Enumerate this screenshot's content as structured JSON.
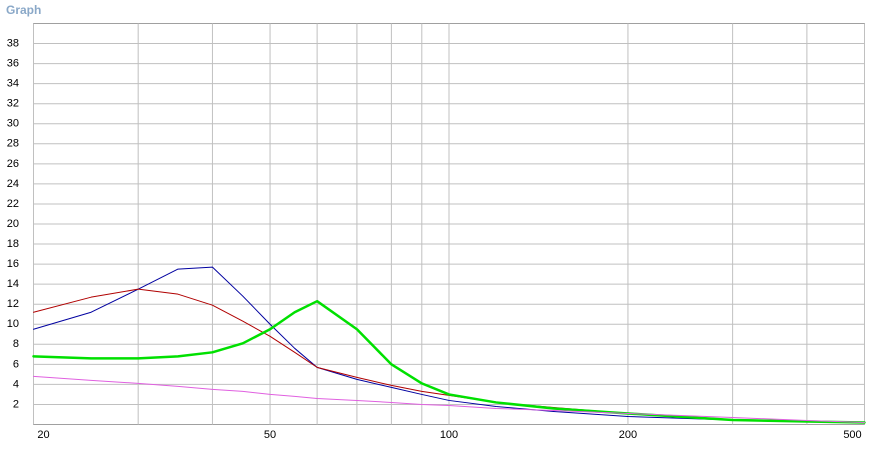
{
  "chart_data": {
    "type": "line",
    "title": "Graph",
    "x": [
      20,
      25,
      30,
      35,
      40,
      45,
      50,
      55,
      60,
      70,
      80,
      90,
      100,
      120,
      150,
      200,
      300,
      400,
      500
    ],
    "xlim": [
      20,
      500
    ],
    "xlog": true,
    "xticks": [
      20,
      50,
      100,
      200,
      500
    ],
    "xminor": [
      30,
      40,
      60,
      70,
      80,
      90,
      300,
      400
    ],
    "ylim": [
      0,
      40
    ],
    "yticks": [
      2,
      4,
      6,
      8,
      10,
      12,
      14,
      16,
      18,
      20,
      22,
      24,
      26,
      28,
      30,
      32,
      34,
      36,
      38
    ],
    "grid": true,
    "series": [
      {
        "color": "#0000a0",
        "width": 1,
        "values": [
          9.5,
          11.2,
          13.5,
          15.5,
          15.7,
          12.8,
          10.0,
          7.6,
          5.7,
          4.5,
          3.7,
          3.0,
          2.4,
          1.8,
          1.3,
          0.8,
          0.45,
          0.3,
          0.2
        ]
      },
      {
        "color": "#b00000",
        "width": 1,
        "values": [
          11.2,
          12.7,
          13.5,
          13.0,
          11.9,
          10.3,
          8.8,
          7.2,
          5.7,
          4.7,
          3.9,
          3.3,
          2.9,
          2.2,
          1.7,
          1.1,
          0.5,
          0.35,
          0.2
        ]
      },
      {
        "color": "#00e000",
        "width": 2.5,
        "values": [
          6.8,
          6.6,
          6.6,
          6.8,
          7.2,
          8.1,
          9.5,
          11.2,
          12.3,
          9.5,
          6.0,
          4.1,
          3.0,
          2.2,
          1.6,
          1.1,
          0.45,
          0.3,
          0.2
        ]
      },
      {
        "color": "#e060e0",
        "width": 1,
        "values": [
          4.8,
          4.4,
          4.1,
          3.8,
          3.5,
          3.3,
          3.0,
          2.8,
          2.6,
          2.4,
          2.2,
          2.0,
          1.9,
          1.6,
          1.4,
          1.1,
          0.7,
          0.4,
          0.2
        ]
      }
    ]
  }
}
